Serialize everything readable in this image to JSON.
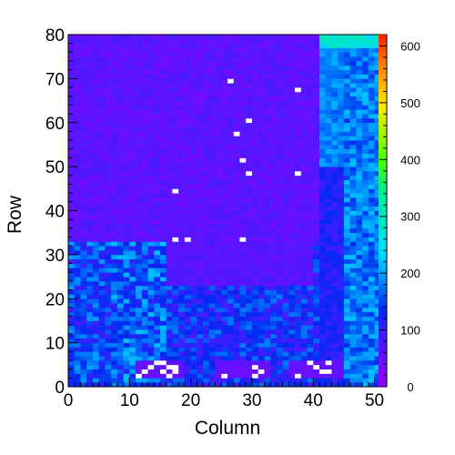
{
  "chart_data": {
    "type": "heatmap",
    "title": "",
    "xlabel": "Column",
    "ylabel": "Row",
    "xlim": [
      0,
      52
    ],
    "ylim": [
      0,
      80
    ],
    "zlim": [
      0,
      620
    ],
    "x_ticks": [
      "0",
      "10",
      "20",
      "30",
      "40",
      "50"
    ],
    "y_ticks": [
      "0",
      "10",
      "20",
      "30",
      "40",
      "50",
      "60",
      "70",
      "80"
    ],
    "z_ticks": [
      "0",
      "100",
      "200",
      "300",
      "400",
      "500",
      "600"
    ],
    "colorbar": "rainbow",
    "bins": {
      "columns": 52,
      "rows": 80,
      "column_width": 1,
      "row_height": 1
    },
    "empty_bin_color": "#ffffff",
    "regions": [
      {
        "rows": [
          0,
          33
        ],
        "columns": [
          0,
          7
        ],
        "value_range": [
          90,
          200
        ]
      },
      {
        "rows": [
          0,
          33
        ],
        "columns": [
          7,
          16
        ],
        "value_range": [
          100,
          220
        ]
      },
      {
        "rows": [
          0,
          33
        ],
        "columns": [
          16,
          41
        ],
        "value_range": [
          80,
          180
        ]
      },
      {
        "rows": [
          33,
          80
        ],
        "columns": [
          0,
          41
        ],
        "value_range": [
          40,
          80
        ]
      },
      {
        "rows": [
          23,
          33
        ],
        "columns": [
          16,
          40
        ],
        "value_range": [
          50,
          80
        ]
      },
      {
        "rows": [
          0,
          50
        ],
        "columns": [
          41,
          45
        ],
        "value_range": [
          90,
          140
        ]
      },
      {
        "rows": [
          0,
          80
        ],
        "columns": [
          45,
          52
        ],
        "value_range": [
          140,
          220
        ]
      },
      {
        "rows": [
          50,
          77
        ],
        "columns": [
          41,
          45
        ],
        "value_range": [
          160,
          210
        ]
      },
      {
        "rows": [
          77,
          80
        ],
        "columns": [
          41,
          52
        ],
        "value_range": [
          230,
          320
        ]
      },
      {
        "rows": [
          2,
          6
        ],
        "columns": [
          11,
          19
        ],
        "value_range": [
          40,
          60
        ]
      },
      {
        "rows": [
          2,
          6
        ],
        "columns": [
          24,
          33
        ],
        "value_range": [
          40,
          60
        ]
      },
      {
        "rows": [
          2,
          6
        ],
        "columns": [
          36,
          45
        ],
        "value_range": [
          40,
          60
        ]
      }
    ],
    "empty_bins": [
      [
        26,
        69
      ],
      [
        37,
        67
      ],
      [
        29,
        60
      ],
      [
        27,
        57
      ],
      [
        28,
        51
      ],
      [
        29,
        48
      ],
      [
        37,
        48
      ],
      [
        17,
        44
      ],
      [
        17,
        33
      ],
      [
        19,
        33
      ],
      [
        28,
        33
      ],
      [
        14,
        5
      ],
      [
        15,
        5
      ],
      [
        16,
        4
      ],
      [
        17,
        4
      ],
      [
        13,
        4
      ],
      [
        12,
        3
      ],
      [
        15,
        3
      ],
      [
        17,
        3
      ],
      [
        11,
        2
      ],
      [
        16,
        2
      ],
      [
        25,
        2
      ],
      [
        30,
        4
      ],
      [
        31,
        3
      ],
      [
        30,
        2
      ],
      [
        39,
        5
      ],
      [
        40,
        4
      ],
      [
        42,
        5
      ],
      [
        41,
        3
      ],
      [
        42,
        3
      ],
      [
        37,
        2
      ]
    ]
  }
}
